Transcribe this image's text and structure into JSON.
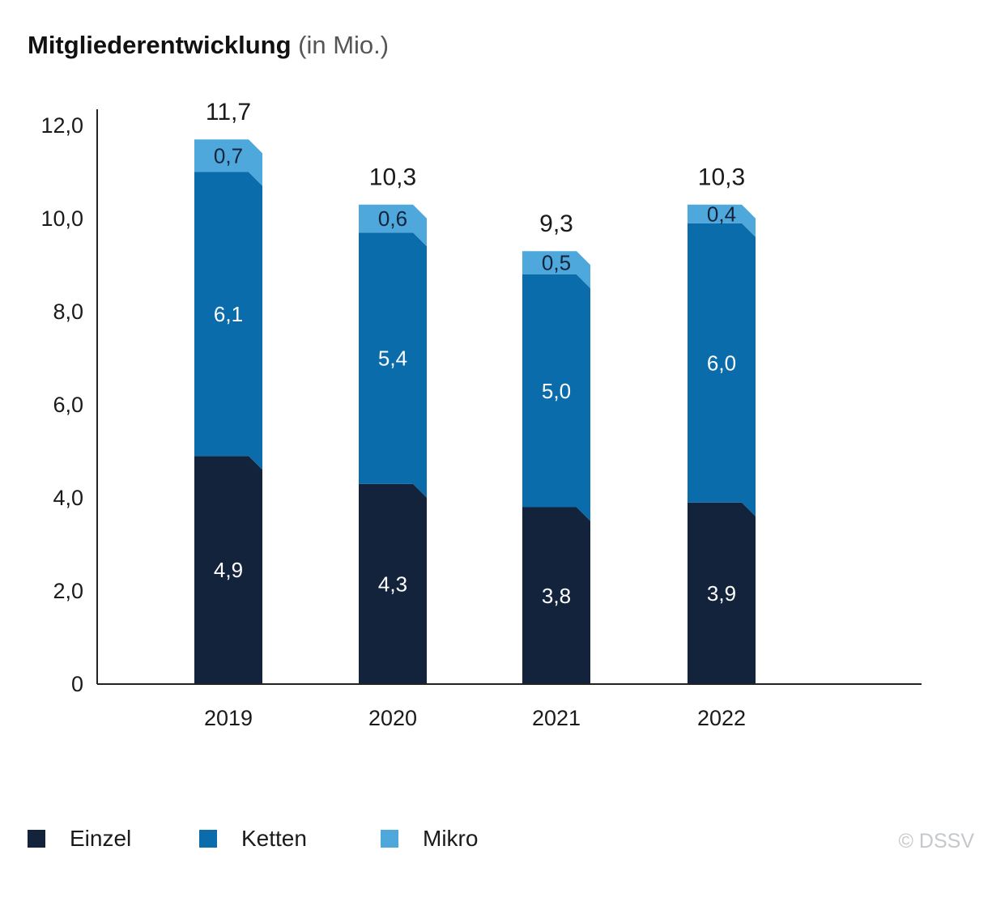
{
  "title": {
    "bold": "Mitgliederentwicklung",
    "unit": "(in Mio.)"
  },
  "copyright": "© DSSV",
  "colors": {
    "einzel": "#13233b",
    "ketten": "#0a6cab",
    "mikro": "#4fa8db",
    "axis": "#222222"
  },
  "legend": [
    {
      "label": "Einzel",
      "color": "#13233b"
    },
    {
      "label": "Ketten",
      "color": "#0a6cab"
    },
    {
      "label": "Mikro",
      "color": "#4fa8db"
    }
  ],
  "chart_data": {
    "type": "bar",
    "stacked": true,
    "categories": [
      "2019",
      "2020",
      "2021",
      "2022"
    ],
    "series": [
      {
        "name": "Einzel",
        "values": [
          4.9,
          4.3,
          3.8,
          3.9
        ],
        "labels": [
          "4,9",
          "4,3",
          "3,8",
          "3,9"
        ]
      },
      {
        "name": "Ketten",
        "values": [
          6.1,
          5.4,
          5.0,
          6.0
        ],
        "labels": [
          "6,1",
          "5,4",
          "5,0",
          "6,0"
        ]
      },
      {
        "name": "Mikro",
        "values": [
          0.7,
          0.6,
          0.5,
          0.4
        ],
        "labels": [
          "0,7",
          "0,6",
          "0,5",
          "0,4"
        ]
      }
    ],
    "totals": [
      11.7,
      10.3,
      9.3,
      10.3
    ],
    "total_labels": [
      "11,7",
      "10,3",
      "9,3",
      "10,3"
    ],
    "ylim": [
      0,
      12.0
    ],
    "yticks": [
      0,
      2.0,
      4.0,
      6.0,
      8.0,
      10.0,
      12.0
    ],
    "ytick_labels": [
      "0",
      "2,0",
      "4,0",
      "6,0",
      "8,0",
      "10,0",
      "12,0"
    ],
    "xlabel": "",
    "ylabel": "",
    "grid": false,
    "legend_position": "bottom-left"
  }
}
